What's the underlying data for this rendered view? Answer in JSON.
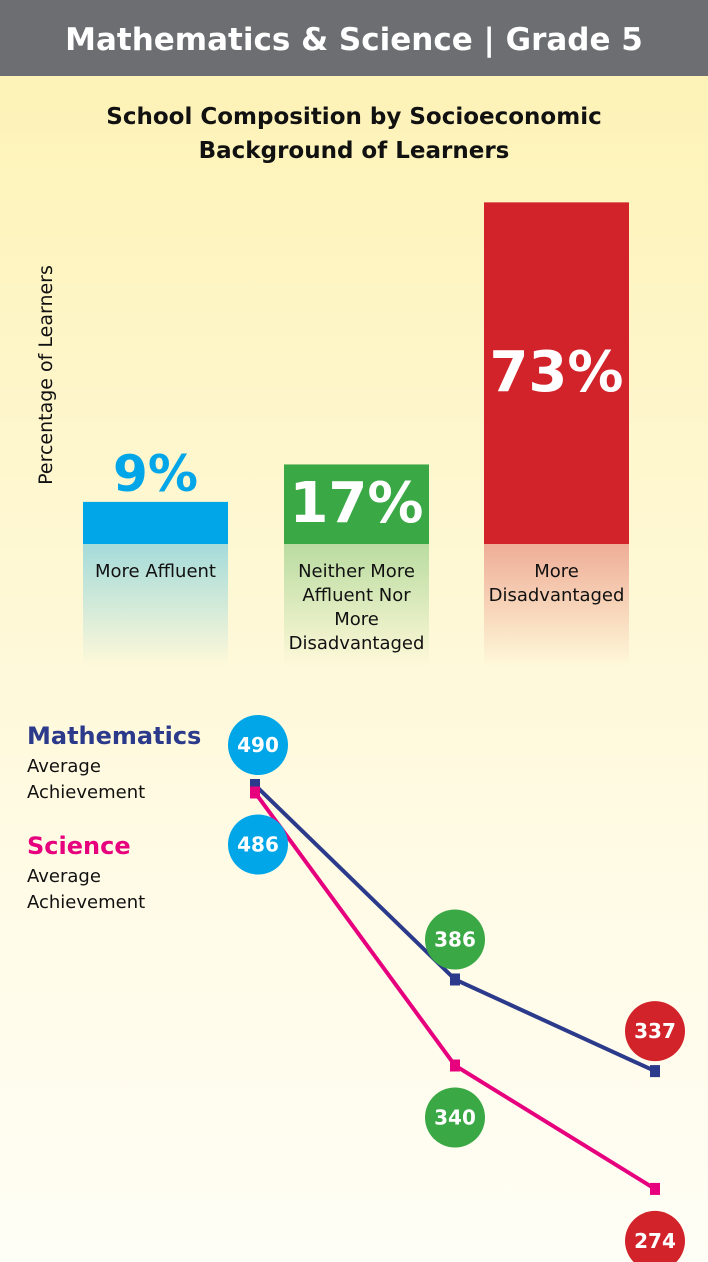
{
  "header": "Mathematics & Science | Grade 5",
  "chart_data": [
    {
      "type": "bar",
      "title": "School Composition by Socioeconomic Background of Learners",
      "y_label": "Percentage of Learners",
      "categories": [
        "More Affluent",
        "Neither More Affluent Nor More Disadvantaged",
        "More Disadvantaged"
      ],
      "values": [
        9,
        17,
        73
      ],
      "value_labels": [
        "9%",
        "17%",
        "73%"
      ],
      "colors": [
        "#00a6e8",
        "#3aa845",
        "#d2232a"
      ]
    },
    {
      "type": "line",
      "series": [
        {
          "name": "Mathematics",
          "note": "Average Achievement",
          "color": "#2b3a8a",
          "values": [
            490,
            386,
            337
          ]
        },
        {
          "name": "Science",
          "note": "Average Achievement",
          "color": "#e6007e",
          "values": [
            486,
            340,
            274
          ]
        }
      ],
      "point_colors": [
        "#00a6e8",
        "#3aa845",
        "#d2232a"
      ]
    }
  ]
}
